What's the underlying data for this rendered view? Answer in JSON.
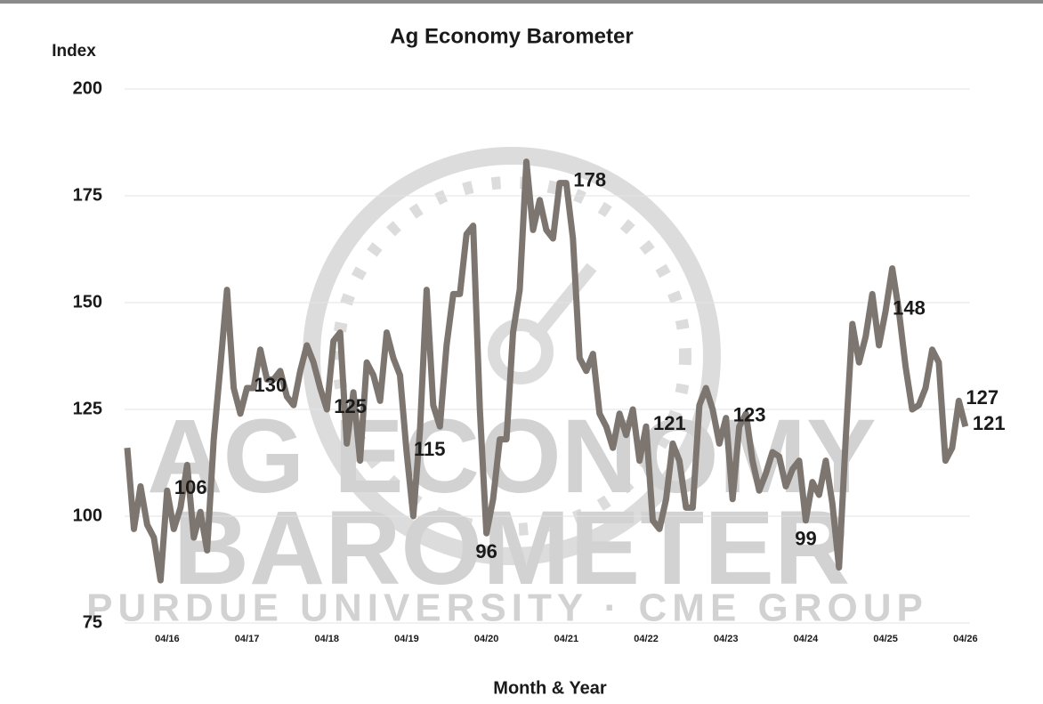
{
  "chart_data": {
    "type": "line",
    "title": "Ag Economy Barometer",
    "y_label": "Index",
    "x_label": "Month & Year",
    "watermark": [
      "AG ECONOMY",
      "BAROMETER",
      "PURDUE UNIVERSITY · CME GROUP"
    ],
    "categories": [
      null,
      null,
      null,
      null,
      null,
      null,
      "04/16",
      null,
      null,
      null,
      null,
      null,
      null,
      null,
      null,
      null,
      null,
      null,
      "04/17",
      null,
      null,
      null,
      null,
      null,
      null,
      null,
      null,
      null,
      null,
      null,
      "04/18",
      null,
      null,
      null,
      null,
      null,
      null,
      null,
      null,
      null,
      null,
      null,
      "04/19",
      null,
      null,
      null,
      null,
      null,
      null,
      null,
      null,
      null,
      null,
      null,
      "04/20",
      null,
      null,
      null,
      null,
      null,
      null,
      null,
      null,
      null,
      null,
      null,
      "04/21",
      null,
      null,
      null,
      null,
      null,
      null,
      null,
      null,
      null,
      null,
      null,
      "04/22",
      null,
      null,
      null,
      null,
      null,
      null,
      null,
      null,
      null,
      null,
      null,
      "04/23",
      null,
      null,
      null,
      null,
      null,
      null,
      null,
      null,
      null,
      null,
      null,
      "04/24",
      null,
      null,
      null,
      null,
      null,
      null,
      null,
      null,
      null,
      null,
      null,
      "04/25",
      null,
      null,
      null,
      null,
      null,
      null,
      null,
      null,
      null,
      null,
      null,
      "04/26"
    ],
    "values": [
      116,
      97,
      107,
      98,
      95,
      85,
      106,
      97,
      102,
      112,
      95,
      101,
      92,
      118,
      135,
      153,
      130,
      124,
      130,
      130,
      139,
      132,
      132,
      134,
      128,
      126,
      134,
      140,
      136,
      130,
      125,
      141,
      143,
      117,
      129,
      113,
      136,
      133,
      127,
      143,
      137,
      133,
      115,
      100,
      120,
      153,
      126,
      121,
      140,
      152,
      152,
      166,
      168,
      125,
      96,
      104,
      118,
      118,
      143,
      153,
      183,
      167,
      174,
      167,
      165,
      178,
      178,
      165,
      137,
      134,
      138,
      124,
      121,
      116,
      124,
      119,
      125,
      113,
      121,
      99,
      97,
      104,
      117,
      113,
      102,
      102,
      126,
      130,
      125,
      117,
      123,
      104,
      121,
      124,
      113,
      106,
      110,
      115,
      114,
      107,
      111,
      113,
      99,
      108,
      105,
      113,
      103,
      88,
      118,
      145,
      136,
      142,
      152,
      140,
      148,
      158,
      148,
      135,
      125,
      126,
      130,
      139,
      136,
      113,
      116,
      127,
      121
    ],
    "labeled_points": [
      6,
      18,
      30,
      42,
      54,
      66,
      78,
      90,
      102,
      114,
      125,
      126
    ],
    "color": "#7d756f",
    "ylim": [
      75,
      200
    ],
    "yticks": [
      75,
      100,
      125,
      150,
      175,
      200
    ],
    "grid": true
  }
}
